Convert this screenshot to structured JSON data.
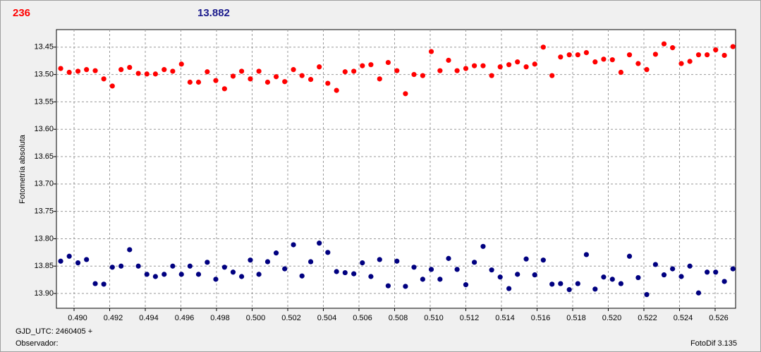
{
  "header": {
    "left_value": "236",
    "right_value": "13.882"
  },
  "footer": {
    "date": "GJD_UTC: 2460405 +",
    "observer": "Observador:",
    "software": "FotoDif 3.135"
  },
  "chart_data": {
    "type": "scatter",
    "y_label": "Fotometría absoluta",
    "grid": true,
    "y_inverted": true,
    "xlim": [
      0.48901,
      0.52715
    ],
    "ylim": [
      13.418,
      13.927
    ],
    "xticks": [
      {
        "value": 0.49,
        "label": "0.490"
      },
      0.492,
      0.494,
      0.496,
      0.498,
      {
        "value": 0.5,
        "label": "0.500"
      },
      0.502,
      0.504,
      0.506,
      0.508,
      {
        "value": 0.51,
        "label": "0.510"
      },
      0.512,
      0.514,
      0.516,
      0.518,
      {
        "value": 0.52,
        "label": "0.520"
      },
      0.522,
      0.524,
      0.526
    ],
    "yticks": [
      13.45,
      {
        "value": 13.5,
        "label": "13.50"
      },
      13.55,
      {
        "value": 13.6,
        "label": "13.60"
      },
      13.65,
      {
        "value": 13.7,
        "label": "13.70"
      },
      13.75,
      {
        "value": 13.8,
        "label": "13.80"
      },
      13.85,
      {
        "value": 13.9,
        "label": "13.90"
      }
    ],
    "x": [
      0.48925,
      0.48973,
      0.49022,
      0.4907,
      0.49119,
      0.49167,
      0.49215,
      0.49264,
      0.49312,
      0.49361,
      0.49409,
      0.49457,
      0.49506,
      0.49554,
      0.49603,
      0.49651,
      0.49699,
      0.49748,
      0.49796,
      0.49845,
      0.49893,
      0.49941,
      0.4999,
      0.50038,
      0.50087,
      0.50135,
      0.50183,
      0.50232,
      0.5028,
      0.50329,
      0.50377,
      0.50425,
      0.50474,
      0.50522,
      0.50571,
      0.50619,
      0.50667,
      0.50716,
      0.50764,
      0.50813,
      0.50861,
      0.50909,
      0.50958,
      0.51006,
      0.51055,
      0.51103,
      0.51151,
      0.512,
      0.51248,
      0.51297,
      0.51345,
      0.51393,
      0.51442,
      0.5149,
      0.51539,
      0.51587,
      0.51635,
      0.51684,
      0.51732,
      0.51781,
      0.51829,
      0.51877,
      0.51926,
      0.51974,
      0.52023,
      0.52071,
      0.52119,
      0.52168,
      0.52216,
      0.52265,
      0.52313,
      0.52361,
      0.5241,
      0.52458,
      0.52507,
      0.52555,
      0.52603,
      0.52652,
      0.527
    ],
    "series": [
      {
        "color": "#ff0000",
        "values": [
          13.489,
          13.496,
          13.494,
          13.491,
          13.493,
          13.508,
          13.521,
          13.491,
          13.487,
          13.498,
          13.499,
          13.499,
          13.491,
          13.494,
          13.481,
          13.514,
          13.514,
          13.495,
          13.511,
          13.526,
          13.503,
          13.494,
          13.508,
          13.494,
          13.514,
          13.504,
          13.513,
          13.491,
          13.502,
          13.509,
          13.486,
          13.516,
          13.529,
          13.495,
          13.494,
          13.484,
          13.482,
          13.508,
          13.478,
          13.493,
          13.535,
          13.5,
          13.502,
          13.458,
          13.493,
          13.474,
          13.493,
          13.489,
          13.484,
          13.484,
          13.502,
          13.486,
          13.482,
          13.477,
          13.486,
          13.481,
          13.45,
          13.502,
          13.468,
          13.464,
          13.464,
          13.46,
          13.477,
          13.472,
          13.473,
          13.496,
          13.464,
          13.48,
          13.491,
          13.463,
          13.444,
          13.451,
          13.48,
          13.476,
          13.464,
          13.464,
          13.455,
          13.465,
          13.449
        ]
      },
      {
        "color": "#000080",
        "values": [
          13.841,
          13.832,
          13.844,
          13.838,
          13.882,
          13.883,
          13.852,
          13.85,
          13.82,
          13.85,
          13.865,
          13.869,
          13.865,
          13.85,
          13.865,
          13.85,
          13.865,
          13.843,
          13.874,
          13.852,
          13.861,
          13.869,
          13.839,
          13.865,
          13.842,
          13.826,
          13.855,
          13.811,
          13.868,
          13.842,
          13.808,
          13.825,
          13.86,
          13.862,
          13.864,
          13.844,
          13.869,
          13.838,
          13.886,
          13.841,
          13.887,
          13.852,
          13.874,
          13.856,
          13.874,
          13.836,
          13.856,
          13.884,
          13.843,
          13.814,
          13.857,
          13.87,
          13.891,
          13.865,
          13.837,
          13.866,
          13.839,
          13.883,
          13.882,
          13.893,
          13.882,
          13.829,
          13.892,
          13.87,
          13.874,
          13.882,
          13.832,
          13.871,
          13.902,
          13.847,
          13.866,
          13.855,
          13.869,
          13.85,
          13.899,
          13.861,
          13.861,
          13.878,
          13.855
        ]
      }
    ]
  }
}
